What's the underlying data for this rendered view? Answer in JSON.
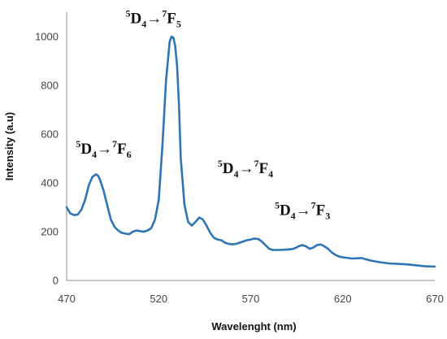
{
  "chart_data": {
    "type": "line",
    "title": "",
    "xlabel": "Wavelenght (nm)",
    "ylabel": "Intensity (a.u)",
    "xlim": [
      470,
      670
    ],
    "ylim": [
      0,
      1100
    ],
    "xticks": [
      470,
      520,
      570,
      620,
      670
    ],
    "yticks": [
      0,
      200,
      400,
      600,
      800,
      1000
    ],
    "grid": false,
    "legend": "none",
    "series_color": "#2E75B6",
    "series": [
      {
        "x": [
          470,
          472,
          474,
          476,
          478,
          480,
          482,
          484,
          486,
          487,
          488,
          490,
          492,
          494,
          496,
          498,
          500,
          502,
          504,
          506,
          508,
          510,
          512,
          514,
          516,
          518,
          520,
          522,
          524,
          526,
          527,
          528,
          529,
          530,
          531,
          532,
          534,
          536,
          538,
          540,
          542,
          544,
          546,
          548,
          550,
          552,
          554,
          556,
          558,
          560,
          562,
          564,
          566,
          568,
          570,
          572,
          574,
          576,
          578,
          580,
          582,
          584,
          586,
          588,
          590,
          592,
          594,
          596,
          598,
          600,
          602,
          604,
          606,
          608,
          610,
          612,
          614,
          616,
          618,
          620,
          625,
          630,
          635,
          640,
          645,
          650,
          655,
          660,
          665,
          670
        ],
        "y": [
          300,
          275,
          268,
          270,
          290,
          330,
          390,
          425,
          435,
          430,
          415,
          370,
          310,
          250,
          220,
          205,
          195,
          192,
          190,
          200,
          205,
          202,
          200,
          205,
          215,
          250,
          330,
          550,
          820,
          980,
          1000,
          995,
          960,
          880,
          720,
          500,
          310,
          240,
          225,
          240,
          258,
          250,
          225,
          195,
          175,
          168,
          165,
          155,
          150,
          148,
          150,
          155,
          160,
          165,
          168,
          172,
          170,
          160,
          145,
          130,
          125,
          125,
          125,
          126,
          127,
          128,
          132,
          140,
          145,
          140,
          130,
          135,
          145,
          148,
          140,
          130,
          115,
          105,
          98,
          95,
          90,
          92,
          82,
          75,
          70,
          68,
          66,
          62,
          58,
          57
        ]
      }
    ],
    "annotations": [
      {
        "anchor_x": 475,
        "anchor_y": 520,
        "term_left": "5",
        "level_left": "D",
        "sub_left": "4",
        "arrow": "→",
        "term_right": "7",
        "level_right": "F",
        "sub_right": "6"
      },
      {
        "anchor_x": 502,
        "anchor_y": 1055,
        "term_left": "5",
        "level_left": "D",
        "sub_left": "4",
        "arrow": "→",
        "term_right": "7",
        "level_right": "F",
        "sub_right": "5"
      },
      {
        "anchor_x": 552,
        "anchor_y": 440,
        "term_left": "5",
        "level_left": "D",
        "sub_left": "4",
        "arrow": "→",
        "term_right": "7",
        "level_right": "F",
        "sub_right": "4"
      },
      {
        "anchor_x": 583,
        "anchor_y": 268,
        "term_left": "5",
        "level_left": "D",
        "sub_left": "4",
        "arrow": "→",
        "term_right": "7",
        "level_right": "F",
        "sub_right": "3"
      }
    ]
  }
}
